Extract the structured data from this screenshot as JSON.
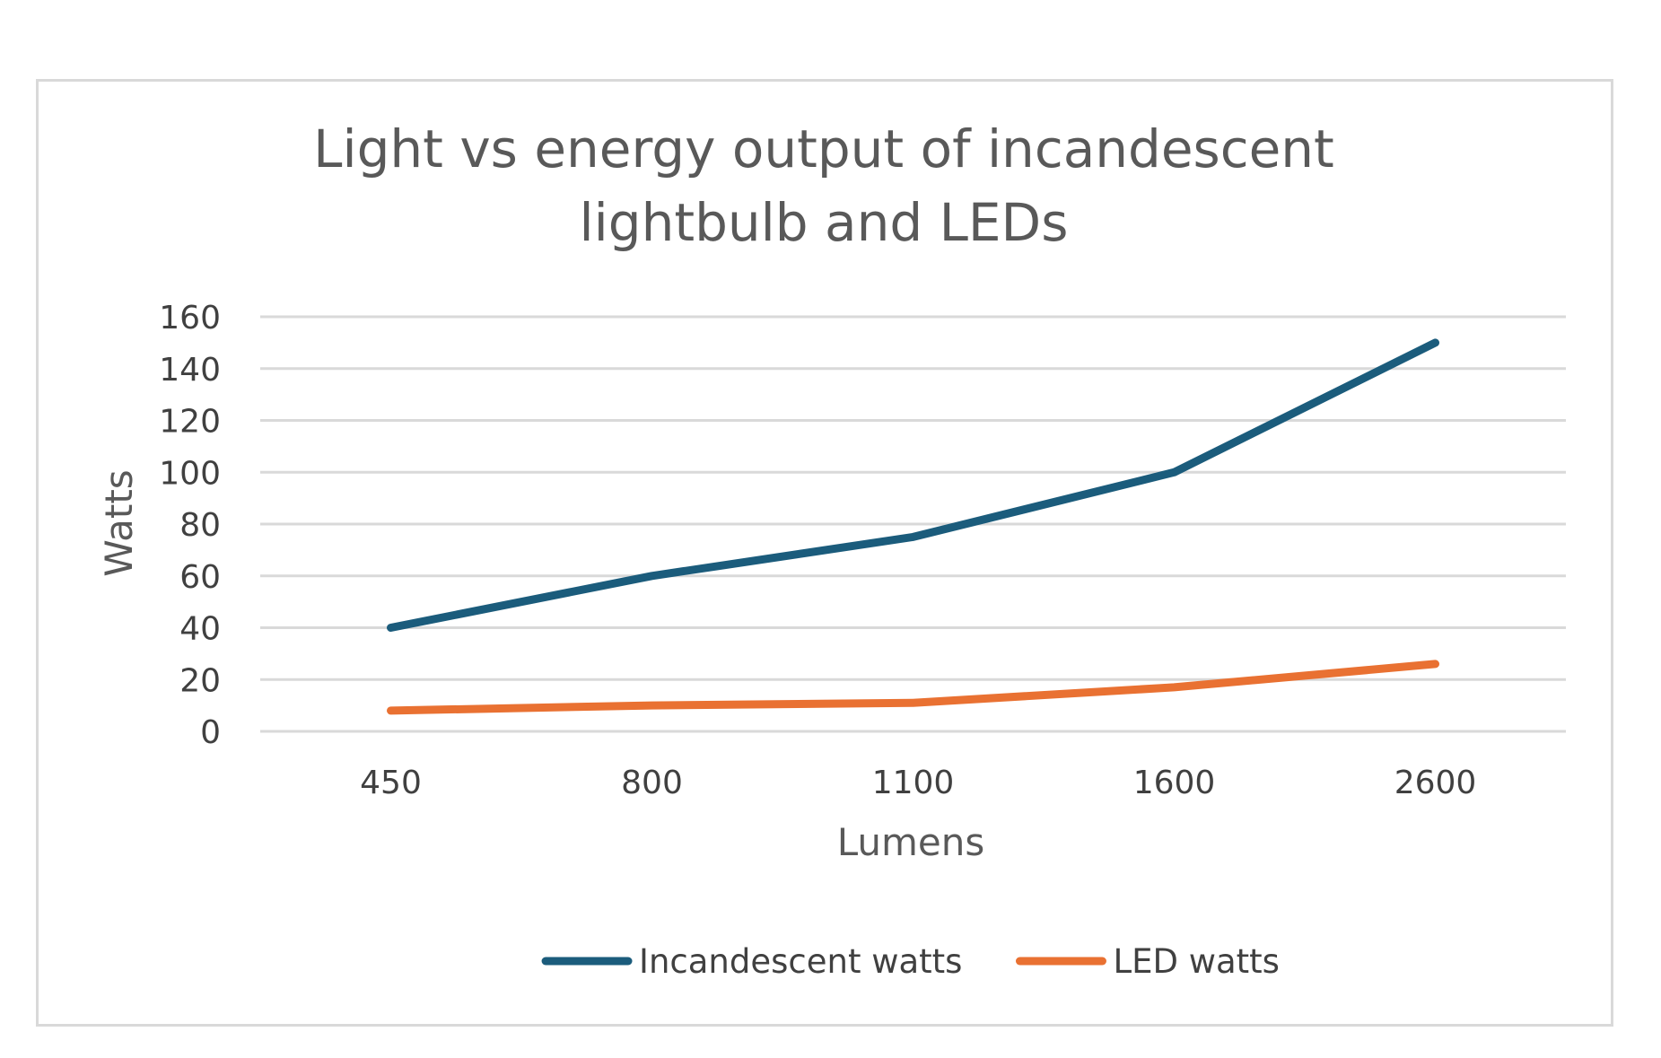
{
  "chart_data": {
    "type": "line",
    "title": "Light vs energy output of incandescent lightbulb and LEDs",
    "title_lines": [
      "Light vs energy output of incandescent",
      "lightbulb and LEDs"
    ],
    "xlabel": "Lumens",
    "ylabel": "Watts",
    "categories": [
      "450",
      "800",
      "1100",
      "1600",
      "2600"
    ],
    "ylim": [
      0,
      160
    ],
    "yticks": [
      0,
      20,
      40,
      60,
      80,
      100,
      120,
      140,
      160
    ],
    "grid": true,
    "legend_position": "bottom",
    "series": [
      {
        "name": "Incandescent watts",
        "values": [
          40,
          60,
          75,
          100,
          150
        ],
        "color": "#1b5c7c"
      },
      {
        "name": "LED watts",
        "values": [
          8,
          10,
          11,
          17,
          26
        ],
        "color": "#e97132"
      }
    ]
  }
}
